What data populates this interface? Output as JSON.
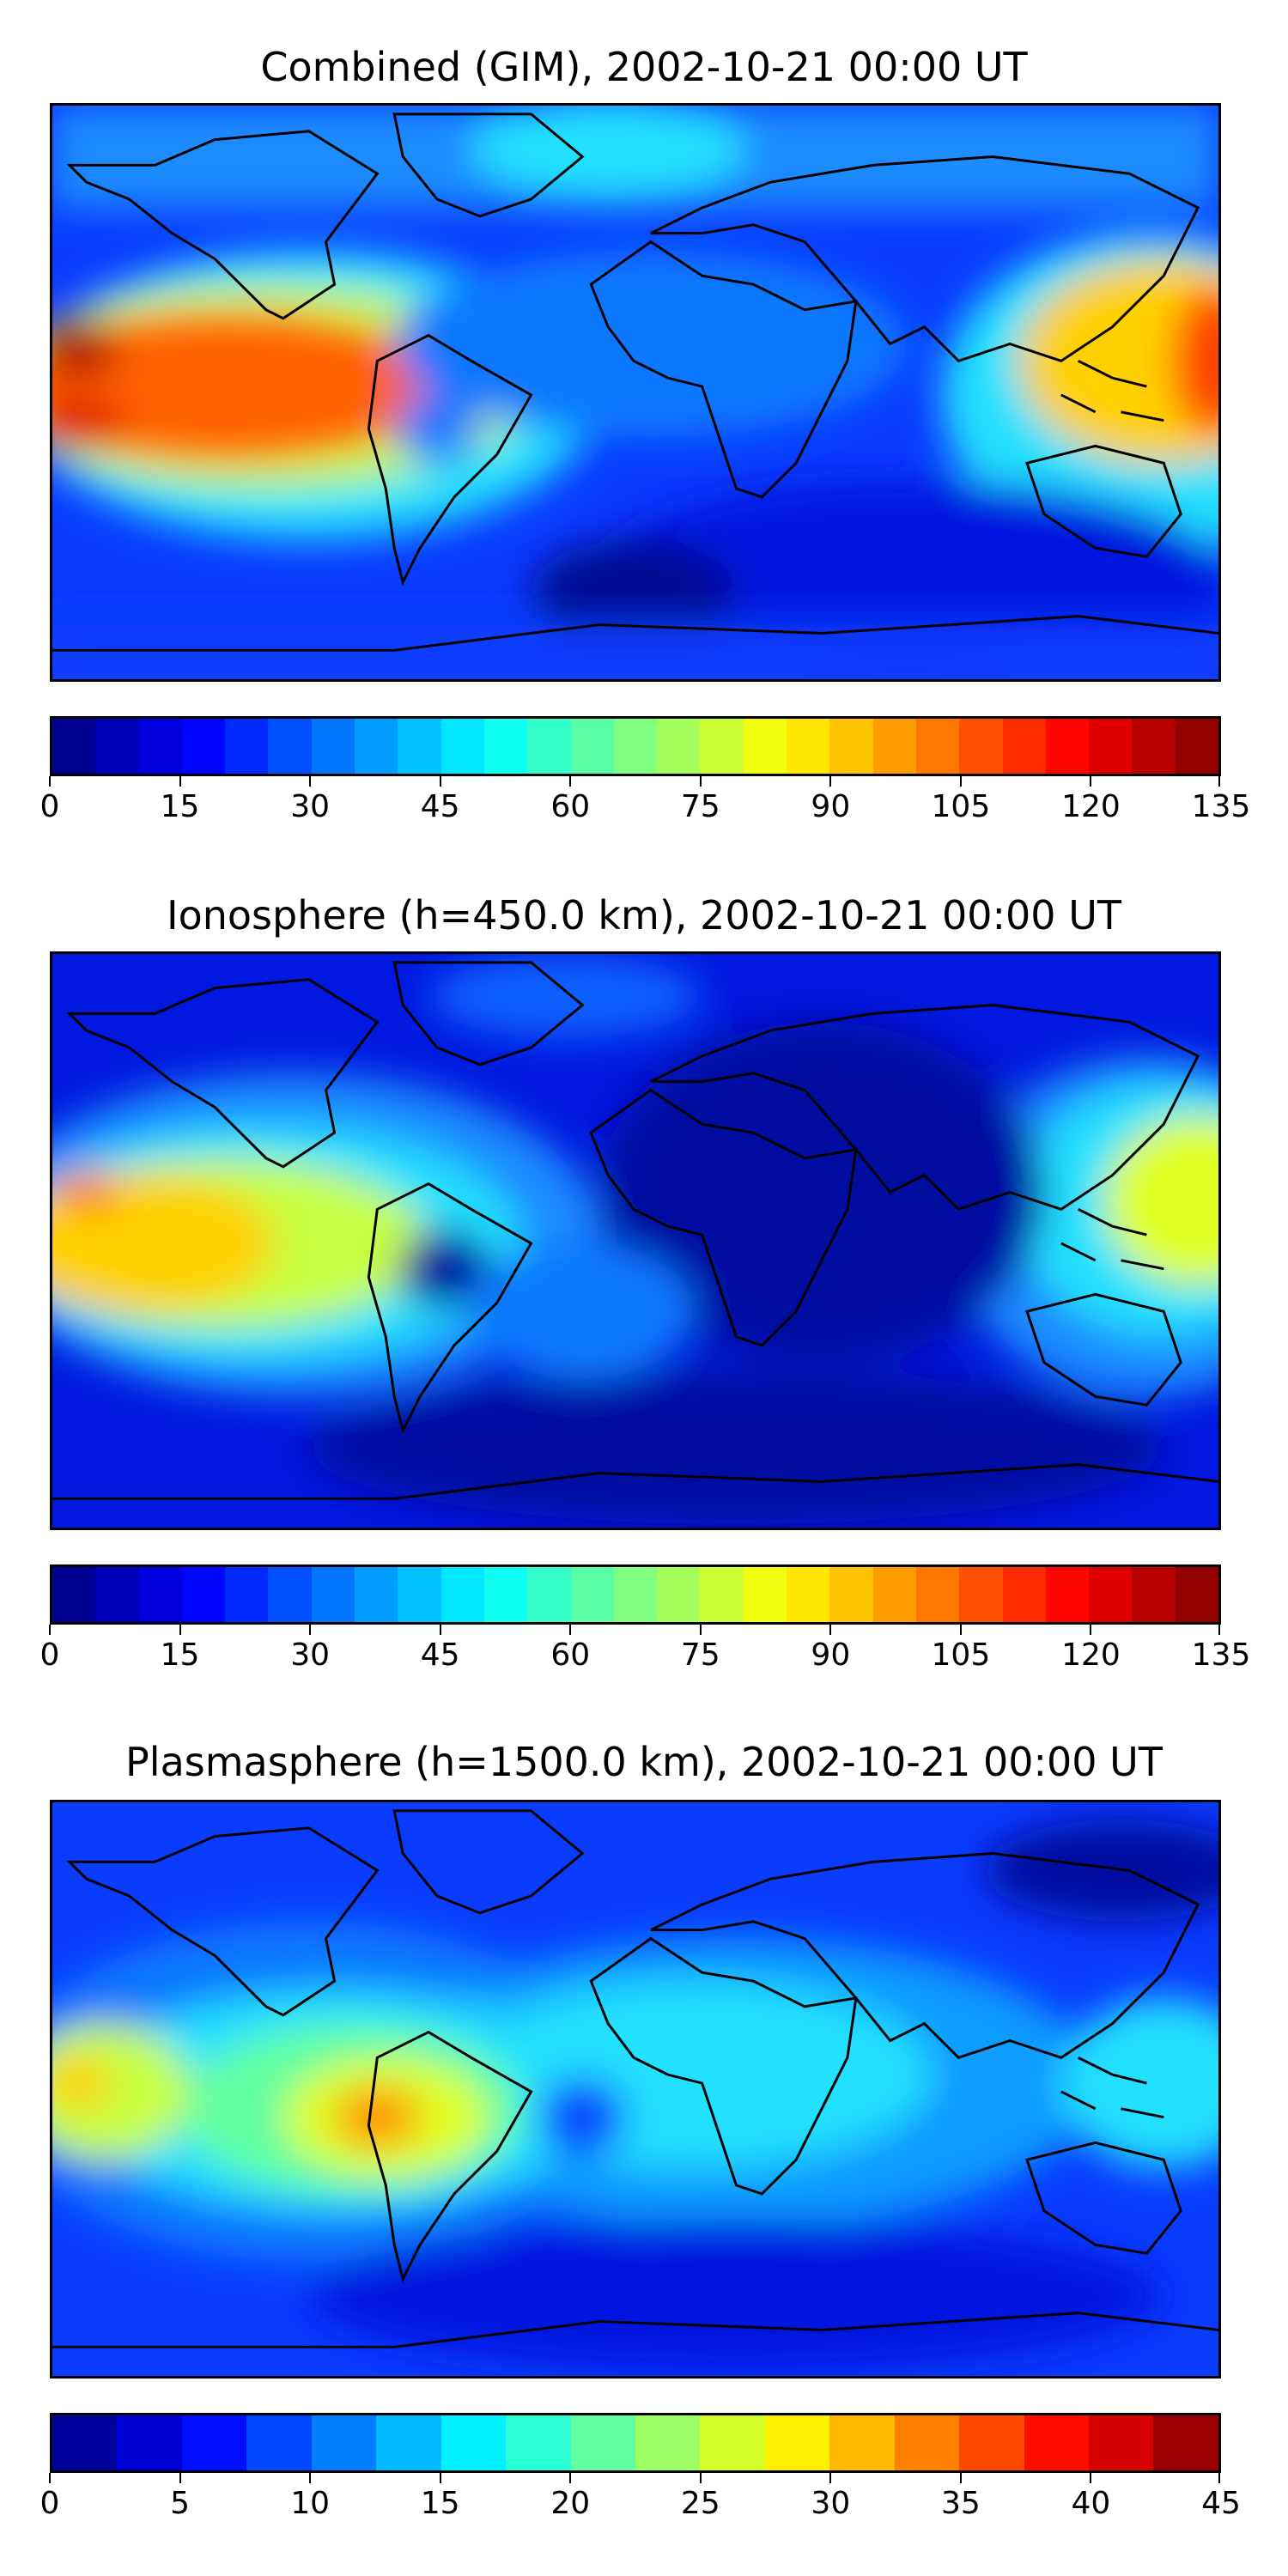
{
  "panels": [
    {
      "title": "Combined (GIM), 2002-10-21 00:00 UT",
      "map_type": "filled-contour",
      "colormap": "jet",
      "colorbar": {
        "min": 0,
        "max": 135,
        "step": 5,
        "ticks": [
          "0",
          "15",
          "30",
          "45",
          "60",
          "75",
          "90",
          "105",
          "120",
          "135"
        ]
      },
      "max_features": [
        "equatorial anomaly maxima over central Pacific (~120-135)",
        "high values over western Pacific/Indonesia (~95-110)"
      ]
    },
    {
      "title": "Ionosphere  (h=450.0 km), 2002-10-21 00:00 UT",
      "map_type": "filled-contour",
      "colormap": "jet",
      "colorbar": {
        "min": 0,
        "max": 135,
        "step": 5,
        "ticks": [
          "0",
          "15",
          "30",
          "45",
          "60",
          "75",
          "90",
          "105",
          "120",
          "135"
        ]
      },
      "max_features": [
        "equatorial band over central Pacific (~80-95)",
        "minimum over Africa/Indian Ocean (~0-15)"
      ]
    },
    {
      "title": "Plasmasphere (h=1500.0 km), 2002-10-21 00:00 UT",
      "map_type": "filled-contour",
      "colormap": "jet",
      "colorbar": {
        "min": 0,
        "max": 45,
        "step": 2.5,
        "ticks": [
          "0",
          "5",
          "10",
          "15",
          "20",
          "25",
          "30",
          "35",
          "40",
          "45"
        ]
      },
      "max_features": [
        "maximum near west coast of South America (~30-35)",
        "secondary maximum central Pacific (~27-30)"
      ]
    }
  ]
}
